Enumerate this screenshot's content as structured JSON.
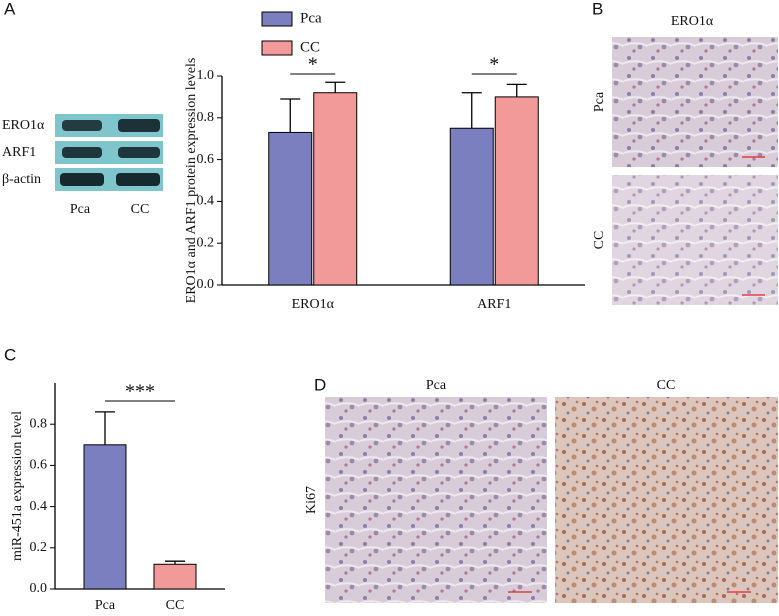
{
  "figure": {
    "panel_labels": [
      "A",
      "B",
      "C",
      "D"
    ],
    "blot": {
      "rows": [
        "ERO1α",
        "ARF1",
        "β-actin"
      ],
      "columns": [
        "Pca",
        "CC"
      ]
    },
    "panel_b": {
      "title": "ERO1α",
      "rows": [
        "Pca",
        "CC"
      ]
    },
    "panel_d": {
      "columns": [
        "Pca",
        "CC"
      ],
      "row": "Ki67"
    }
  },
  "chart_data": [
    {
      "type": "grouped-bar",
      "ylabel": "ERO1α and ARF1 protein expression levels",
      "categories": [
        "ERO1α",
        "ARF1"
      ],
      "series": [
        {
          "name": "Pca",
          "color": "#7b7fc0",
          "values": [
            0.73,
            0.75
          ],
          "errors": [
            0.16,
            0.17
          ]
        },
        {
          "name": "CC",
          "color": "#f29a99",
          "values": [
            0.92,
            0.9
          ],
          "errors": [
            0.05,
            0.06
          ]
        }
      ],
      "annotations": [
        "*",
        "*"
      ],
      "ylim": [
        0,
        1.0
      ],
      "yticks": [
        {
          "value": 0,
          "label": "0.0"
        },
        0.2,
        0.4,
        0.6,
        0.8,
        {
          "value": 1.0,
          "label": "1.0"
        }
      ]
    },
    {
      "type": "bar",
      "ylabel": "miR-451a expression level",
      "categories": [
        "Pca",
        "CC"
      ],
      "values": [
        0.7,
        0.12
      ],
      "errors": [
        0.16,
        0.015
      ],
      "colors": [
        "#7b7fc0",
        "#f29a99"
      ],
      "annotations": [
        "***"
      ],
      "ylim": [
        0,
        1.0
      ],
      "yticks": [
        {
          "value": 0,
          "label": "0.0"
        },
        0.2,
        0.4,
        0.6,
        0.8
      ]
    }
  ]
}
